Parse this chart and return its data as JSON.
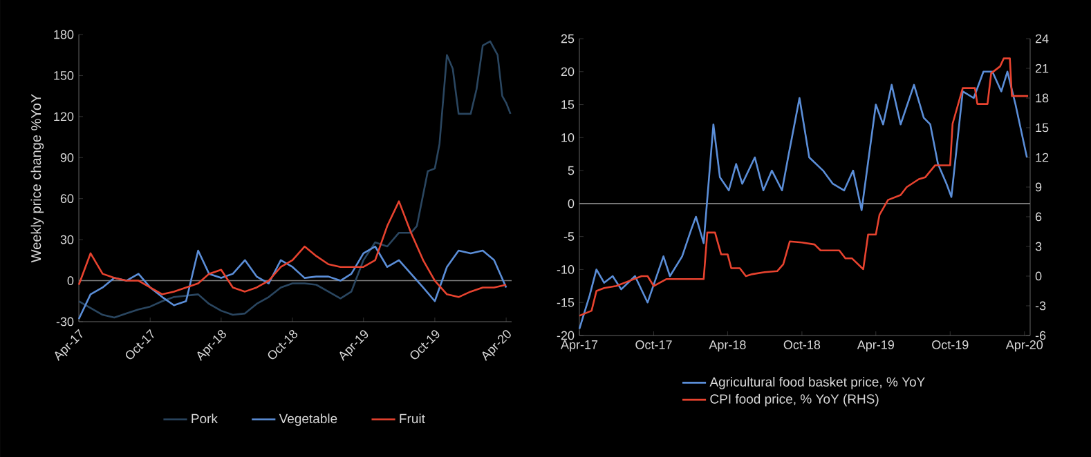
{
  "chart_data": [
    {
      "type": "line",
      "ylabel": "Weekly price change %YoY",
      "x": [
        "2017-04-01",
        "2017-05-01",
        "2017-06-01",
        "2017-07-01",
        "2017-08-01",
        "2017-09-01",
        "2017-10-01",
        "2017-11-01",
        "2017-12-01",
        "2018-01-01",
        "2018-02-01",
        "2018-03-01",
        "2018-04-01",
        "2018-05-01",
        "2018-06-01",
        "2018-07-01",
        "2018-08-01",
        "2018-09-01",
        "2018-10-01",
        "2018-11-01",
        "2018-12-01",
        "2019-01-01",
        "2019-02-01",
        "2019-03-01",
        "2019-04-01",
        "2019-05-01",
        "2019-06-01",
        "2019-07-01",
        "2019-08-01",
        "2019-09-01",
        "2019-10-01",
        "2019-11-01",
        "2019-12-01",
        "2020-01-01",
        "2020-02-01",
        "2020-03-01",
        "2020-04-01"
      ],
      "xlim": [
        "2017-04-01",
        "2020-04-15"
      ],
      "xticks": [
        {
          "value": "2017-04-01",
          "label": "Apr-17"
        },
        {
          "value": "2017-10-01",
          "label": "Oct-17"
        },
        {
          "value": "2018-04-01",
          "label": "Apr-18"
        },
        {
          "value": "2018-10-01",
          "label": "Oct-18"
        },
        {
          "value": "2019-04-01",
          "label": "Apr-19"
        },
        {
          "value": "2019-10-01",
          "label": "Oct-19"
        },
        {
          "value": "2020-04-01",
          "label": "Apr-20"
        }
      ],
      "ylim": [
        -30,
        180
      ],
      "yticks": [
        -30,
        0,
        30,
        60,
        90,
        120,
        150,
        180
      ],
      "legend": "bottom",
      "ref_lines": [
        {
          "axis": "y",
          "value": 0,
          "color": "#7f7f7f"
        }
      ],
      "series": [
        {
          "name": "Pork",
          "color": "#2a4660",
          "x": [
            "2017-04-01",
            "2017-05-01",
            "2017-06-01",
            "2017-07-01",
            "2017-08-01",
            "2017-09-01",
            "2017-10-01",
            "2017-11-01",
            "2017-12-01",
            "2018-01-01",
            "2018-02-01",
            "2018-03-01",
            "2018-04-01",
            "2018-05-01",
            "2018-06-01",
            "2018-07-01",
            "2018-08-01",
            "2018-09-01",
            "2018-10-01",
            "2018-11-01",
            "2018-12-01",
            "2019-01-01",
            "2019-02-01",
            "2019-03-01",
            "2019-04-01",
            "2019-05-01",
            "2019-06-01",
            "2019-07-01",
            "2019-08-01",
            "2019-08-16",
            "2019-09-13",
            "2019-10-01",
            "2019-10-13",
            "2019-11-01",
            "2019-11-16",
            "2019-12-01",
            "2020-01-01",
            "2020-01-16",
            "2020-02-01",
            "2020-02-20",
            "2020-03-10",
            "2020-03-22",
            "2020-04-01",
            "2020-04-12"
          ],
          "values": [
            -15,
            -20,
            -25,
            -27,
            -24,
            -21,
            -19,
            -15,
            -12,
            -11,
            -10,
            -17,
            -22,
            -25,
            -24,
            -17,
            -12,
            -5,
            -2,
            -2,
            -3,
            -8,
            -13,
            -8,
            15,
            28,
            25,
            35,
            35,
            40,
            80,
            82,
            100,
            165,
            155,
            122,
            122,
            140,
            172,
            175,
            165,
            135,
            130,
            122
          ]
        },
        {
          "name": "Vegetable",
          "color": "#5b8ed8",
          "values": [
            -28,
            -10,
            -5,
            2,
            0,
            5,
            -5,
            -12,
            -18,
            -15,
            22,
            5,
            2,
            5,
            15,
            3,
            -2,
            15,
            10,
            2,
            3,
            3,
            0,
            5,
            20,
            25,
            10,
            15,
            5,
            -5,
            -15,
            10,
            22,
            20,
            22,
            15,
            -5
          ]
        },
        {
          "name": "Fruit",
          "color": "#e8432f",
          "values": [
            -3,
            20,
            5,
            2,
            0,
            0,
            -5,
            -10,
            -8,
            -5,
            -2,
            5,
            8,
            -5,
            -8,
            -5,
            0,
            10,
            15,
            25,
            18,
            12,
            10,
            10,
            10,
            15,
            40,
            58,
            35,
            15,
            0,
            -10,
            -12,
            -8,
            -5,
            -5,
            -3
          ]
        }
      ]
    },
    {
      "type": "line",
      "xlim": [
        "2017-04-01",
        "2020-04-15"
      ],
      "xticks": [
        {
          "value": "2017-04-01",
          "label": "Apr-17"
        },
        {
          "value": "2017-10-01",
          "label": "Oct-17"
        },
        {
          "value": "2018-04-01",
          "label": "Apr-18"
        },
        {
          "value": "2018-10-01",
          "label": "Oct-18"
        },
        {
          "value": "2019-04-01",
          "label": "Apr-19"
        },
        {
          "value": "2019-10-01",
          "label": "Oct-19"
        },
        {
          "value": "2020-04-01",
          "label": "Apr-20"
        }
      ],
      "ylim": [
        -20,
        25
      ],
      "yticks": [
        -20,
        -15,
        -10,
        -5,
        0,
        5,
        10,
        15,
        20,
        25
      ],
      "y2lim": [
        -6,
        24
      ],
      "y2ticks": [
        -6,
        -3,
        0,
        3,
        6,
        9,
        12,
        15,
        18,
        21,
        24
      ],
      "legend": "bottom",
      "ref_lines": [
        {
          "axis": "y",
          "value": 0,
          "color": "#7f7f7f"
        }
      ],
      "series": [
        {
          "name": "Agricultural food basket price, % YoY",
          "color": "#5b8ed8",
          "x": [
            "2017-04-01",
            "2017-04-26",
            "2017-05-13",
            "2017-06-01",
            "2017-06-22",
            "2017-07-13",
            "2017-08-16",
            "2017-09-16",
            "2017-10-25",
            "2017-11-10",
            "2017-12-10",
            "2018-01-01",
            "2018-01-13",
            "2018-02-01",
            "2018-02-25",
            "2018-03-13",
            "2018-04-04",
            "2018-04-22",
            "2018-05-07",
            "2018-06-07",
            "2018-06-28",
            "2018-07-19",
            "2018-08-13",
            "2018-08-28",
            "2018-09-25",
            "2018-10-19",
            "2018-11-22",
            "2018-12-16",
            "2019-01-13",
            "2019-02-04",
            "2019-02-25",
            "2019-04-01",
            "2019-04-19",
            "2019-05-10",
            "2019-06-01",
            "2019-07-04",
            "2019-07-28",
            "2019-08-13",
            "2019-09-01",
            "2019-09-22",
            "2019-10-04",
            "2019-11-01",
            "2019-11-28",
            "2019-12-22",
            "2020-01-13",
            "2020-02-04",
            "2020-02-19",
            "2020-03-10",
            "2020-04-07"
          ],
          "values": [
            -19,
            -14,
            -10,
            -12,
            -11,
            -13,
            -11,
            -15,
            -8,
            -11,
            -8,
            -4,
            -2,
            -6,
            12,
            4,
            2,
            6,
            3,
            7,
            2,
            5,
            2,
            7,
            16,
            7,
            5,
            3,
            2,
            5,
            -1,
            15,
            12,
            18,
            12,
            18,
            13,
            12,
            6,
            3,
            1,
            17,
            16,
            20,
            20,
            17,
            20,
            15,
            7
          ]
        },
        {
          "name": "CPI food price, % YoY (RHS)",
          "color": "#e8432f",
          "axis": "y2",
          "x": [
            "2017-04-01",
            "2017-05-01",
            "2017-05-13",
            "2017-06-01",
            "2017-07-01",
            "2017-08-01",
            "2017-09-01",
            "2017-09-16",
            "2017-10-01",
            "2017-11-01",
            "2017-12-01",
            "2018-01-01",
            "2018-02-01",
            "2018-02-10",
            "2018-03-01",
            "2018-03-16",
            "2018-04-01",
            "2018-04-10",
            "2018-05-01",
            "2018-05-16",
            "2018-06-01",
            "2018-07-01",
            "2018-08-01",
            "2018-08-16",
            "2018-09-01",
            "2018-10-01",
            "2018-11-01",
            "2018-11-16",
            "2018-12-01",
            "2019-01-01",
            "2019-01-16",
            "2019-02-01",
            "2019-03-01",
            "2019-03-13",
            "2019-04-01",
            "2019-04-10",
            "2019-05-01",
            "2019-06-01",
            "2019-06-16",
            "2019-07-16",
            "2019-08-01",
            "2019-08-25",
            "2019-10-01",
            "2019-10-07",
            "2019-11-01",
            "2019-12-01",
            "2019-12-07",
            "2020-01-01",
            "2020-01-10",
            "2020-02-01",
            "2020-02-10",
            "2020-02-25",
            "2020-03-01",
            "2020-04-10"
          ],
          "values": [
            -4,
            -3.5,
            -1.5,
            -1.2,
            -1,
            -0.5,
            0,
            0,
            -1,
            -0.3,
            -0.3,
            -0.3,
            -0.3,
            4.4,
            4.4,
            2.2,
            2.2,
            0.8,
            0.8,
            0,
            0.2,
            0.4,
            0.5,
            1.2,
            3.5,
            3.4,
            3.2,
            2.6,
            2.6,
            2.6,
            1.8,
            1.8,
            0.7,
            4.2,
            4.2,
            6.2,
            7.7,
            8.2,
            9,
            9.8,
            10,
            11.2,
            11.2,
            15.4,
            19,
            19,
            17.4,
            17.4,
            20.5,
            21.2,
            22,
            22,
            18.2,
            18.2
          ]
        }
      ]
    }
  ]
}
